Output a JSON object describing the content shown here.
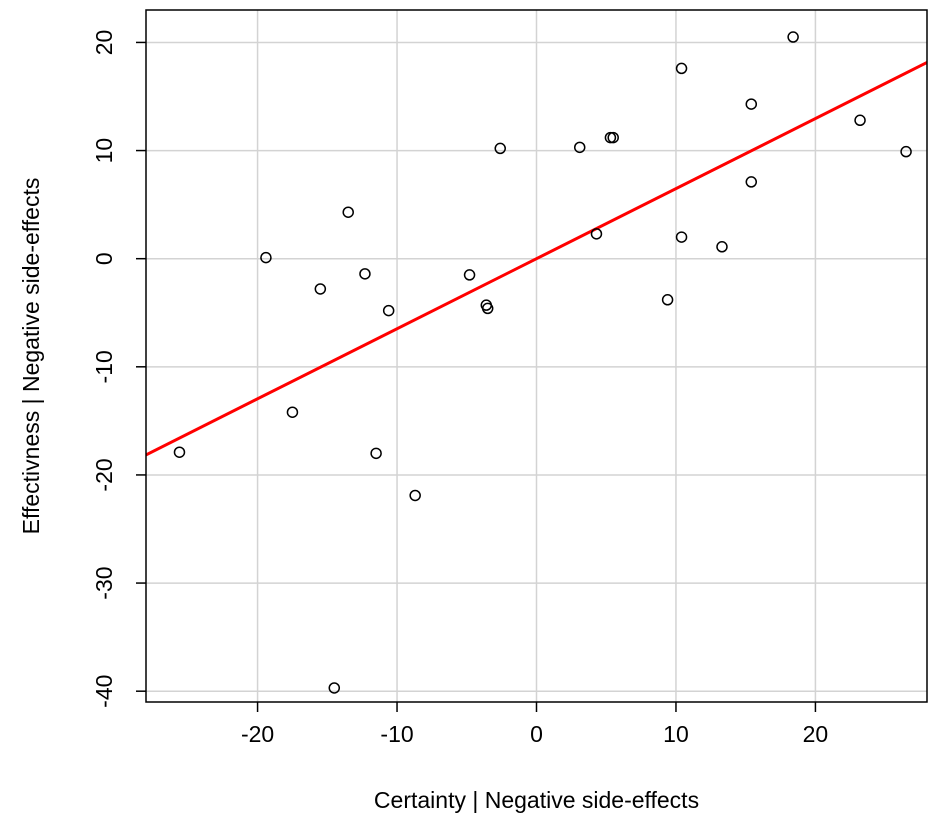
{
  "chart_data": {
    "type": "scatter",
    "title": "",
    "xlabel": "Certainty | Negative side-effects",
    "ylabel": "Effectivness | Negative side-effects",
    "xlim": [
      -28,
      28
    ],
    "ylim": [
      -41,
      23
    ],
    "xticks": [
      -20,
      -10,
      0,
      10,
      20
    ],
    "yticks": [
      -40,
      -30,
      -20,
      -10,
      0,
      10,
      20
    ],
    "x_tick_labels": [
      "-20",
      "-10",
      "0",
      "10",
      "20"
    ],
    "y_tick_labels": [
      "-40",
      "-30",
      "-20",
      "-10",
      "0",
      "10",
      "20"
    ],
    "grid": true,
    "series": [
      {
        "marker": "open-circle",
        "color": "#000000",
        "points": [
          {
            "x": -25.6,
            "y": -17.9
          },
          {
            "x": -19.4,
            "y": 0.1
          },
          {
            "x": -17.5,
            "y": -14.2
          },
          {
            "x": -15.5,
            "y": -2.8
          },
          {
            "x": -14.5,
            "y": -39.7
          },
          {
            "x": -13.5,
            "y": 4.3
          },
          {
            "x": -12.3,
            "y": -1.4
          },
          {
            "x": -11.5,
            "y": -18.0
          },
          {
            "x": -10.6,
            "y": -4.8
          },
          {
            "x": -8.7,
            "y": -21.9
          },
          {
            "x": -4.8,
            "y": -1.5
          },
          {
            "x": -3.6,
            "y": -4.3
          },
          {
            "x": -3.5,
            "y": -4.6
          },
          {
            "x": -2.6,
            "y": 10.2
          },
          {
            "x": 3.1,
            "y": 10.3
          },
          {
            "x": 4.3,
            "y": 2.3
          },
          {
            "x": 5.3,
            "y": 11.2
          },
          {
            "x": 5.5,
            "y": 11.2
          },
          {
            "x": 9.4,
            "y": -3.8
          },
          {
            "x": 10.4,
            "y": 17.6
          },
          {
            "x": 10.4,
            "y": 2.0
          },
          {
            "x": 13.3,
            "y": 1.1
          },
          {
            "x": 15.4,
            "y": 14.3
          },
          {
            "x": 15.4,
            "y": 7.1
          },
          {
            "x": 18.4,
            "y": 20.5
          },
          {
            "x": 23.2,
            "y": 12.8
          },
          {
            "x": 26.5,
            "y": 9.9
          }
        ]
      }
    ],
    "fit_line": {
      "color": "#ff0000",
      "slope": 0.648,
      "intercept": 0.0
    }
  }
}
